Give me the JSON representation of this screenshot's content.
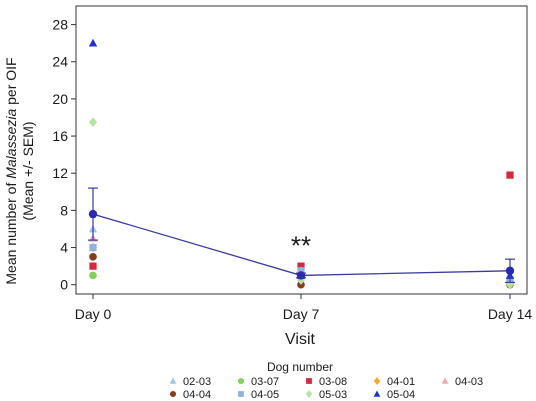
{
  "chart_data": {
    "type": "scatter",
    "title": "",
    "xlabel": "Visit",
    "ylabel_line1_prefix": "Mean number of ",
    "ylabel_line1_italic": "Malassezia",
    "ylabel_line1_suffix": " per OIF",
    "ylabel_line2": "(Mean +/- SEM)",
    "categories": [
      "Day 0",
      "Day 7",
      "Day 14"
    ],
    "ylim": [
      -1,
      30
    ],
    "yticks": [
      0,
      4,
      8,
      12,
      16,
      20,
      24,
      28
    ],
    "grid": false,
    "annotation": "**",
    "annotation_category": 1,
    "annotation_y": 4.2,
    "mean_line": {
      "color": "#3a3aa0",
      "values": [
        7.6,
        1.0,
        1.5
      ],
      "sem": [
        2.8,
        0.25,
        1.25
      ]
    },
    "legend": {
      "title": "Dog number",
      "placement": "bottom",
      "entries": [
        {
          "name": "02-03",
          "marker": "triangle",
          "color": "#9ecae1"
        },
        {
          "name": "03-07",
          "marker": "circle",
          "color": "#7fd35a"
        },
        {
          "name": "03-08",
          "marker": "square",
          "color": "#d7263d"
        },
        {
          "name": "04-01",
          "marker": "diamond",
          "color": "#f5a623"
        },
        {
          "name": "04-03",
          "marker": "triangle",
          "color": "#f4a6b6"
        },
        {
          "name": "04-04",
          "marker": "circle",
          "color": "#8b3a1a"
        },
        {
          "name": "04-05",
          "marker": "square",
          "color": "#8fb3e0"
        },
        {
          "name": "05-03",
          "marker": "diamond",
          "color": "#b5e3a1"
        },
        {
          "name": "05-04",
          "marker": "triangle",
          "color": "#1f2fd0"
        }
      ]
    },
    "series": [
      {
        "name": "02-03",
        "values": [
          6.0,
          1.5,
          0.8
        ]
      },
      {
        "name": "03-07",
        "values": [
          1.0,
          1.0,
          0.0
        ]
      },
      {
        "name": "03-08",
        "values": [
          2.0,
          2.0,
          11.8
        ]
      },
      {
        "name": "04-01",
        "values": [
          4.0,
          1.0,
          0.5
        ]
      },
      {
        "name": "04-03",
        "values": [
          5.0,
          1.5,
          0.3
        ]
      },
      {
        "name": "04-04",
        "values": [
          3.0,
          0.0,
          0.0
        ]
      },
      {
        "name": "04-05",
        "values": [
          4.0,
          1.5,
          0.5
        ]
      },
      {
        "name": "05-03",
        "values": [
          17.5,
          0.5,
          0.0
        ]
      },
      {
        "name": "05-04",
        "values": [
          26.0,
          1.0,
          1.0
        ]
      }
    ]
  }
}
